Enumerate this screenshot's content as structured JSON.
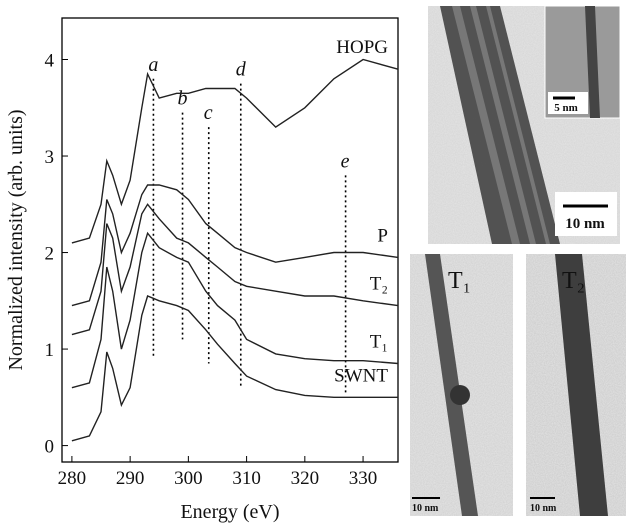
{
  "chart_data": {
    "type": "line",
    "x_label": "Energy (eV)",
    "y_label": "Normalized intensity (arb. units)",
    "x": [
      280,
      283,
      285,
      286,
      287,
      288.5,
      290,
      292,
      293,
      295,
      298,
      300,
      303,
      305,
      308,
      310,
      315,
      320,
      325,
      330,
      336
    ],
    "series": [
      {
        "name": "HOPG",
        "color": "#222",
        "values": [
          2.1,
          2.15,
          2.5,
          2.95,
          2.8,
          2.5,
          2.75,
          3.5,
          3.85,
          3.6,
          3.65,
          3.65,
          3.7,
          3.7,
          3.7,
          3.6,
          3.3,
          3.5,
          3.8,
          4.0,
          3.9
        ]
      },
      {
        "name": "P",
        "color": "#222",
        "values": [
          1.45,
          1.5,
          1.9,
          2.55,
          2.4,
          2.0,
          2.2,
          2.6,
          2.7,
          2.7,
          2.65,
          2.55,
          2.3,
          2.2,
          2.05,
          2.0,
          1.9,
          1.95,
          2.0,
          2.0,
          1.95
        ]
      },
      {
        "name": "T₂",
        "color": "#222",
        "values": [
          1.15,
          1.2,
          1.6,
          2.3,
          2.15,
          1.6,
          1.85,
          2.4,
          2.5,
          2.35,
          2.15,
          2.1,
          1.95,
          1.85,
          1.7,
          1.65,
          1.6,
          1.55,
          1.55,
          1.5,
          1.45
        ]
      },
      {
        "name": "T₁",
        "color": "#222",
        "values": [
          0.6,
          0.65,
          1.1,
          1.85,
          1.6,
          1.0,
          1.3,
          2.0,
          2.2,
          2.05,
          1.95,
          1.9,
          1.6,
          1.45,
          1.3,
          1.1,
          0.95,
          0.9,
          0.88,
          0.88,
          0.85
        ]
      },
      {
        "name": "SWNT",
        "color": "#222",
        "values": [
          0.05,
          0.1,
          0.35,
          0.97,
          0.8,
          0.42,
          0.6,
          1.35,
          1.55,
          1.5,
          1.45,
          1.4,
          1.2,
          1.05,
          0.85,
          0.72,
          0.58,
          0.52,
          0.5,
          0.5,
          0.5
        ]
      }
    ],
    "peaks": [
      {
        "label": "a",
        "x": 294,
        "y": [
          3.8,
          0.9
        ]
      },
      {
        "label": "b",
        "x": 299,
        "y": [
          3.45,
          1.1
        ]
      },
      {
        "label": "c",
        "x": 303.5,
        "y": [
          3.3,
          0.85
        ]
      },
      {
        "label": "d",
        "x": 309,
        "y": [
          3.75,
          0.6
        ]
      },
      {
        "label": "e",
        "x": 327,
        "y": [
          2.8,
          0.55
        ]
      }
    ],
    "xlim": [
      278.3,
      336
    ],
    "ylim": [
      -0.17,
      4.43
    ],
    "xticks": [
      280,
      290,
      300,
      310,
      320,
      330
    ],
    "yticks": [
      0,
      1,
      2,
      3,
      4
    ]
  },
  "images": {
    "top_inset_scale": "5 nm",
    "top_scale": "10 nm",
    "panels": [
      {
        "label": "T₁",
        "scale": "10 nm"
      },
      {
        "label": "T₂",
        "scale": "10 nm"
      }
    ]
  }
}
